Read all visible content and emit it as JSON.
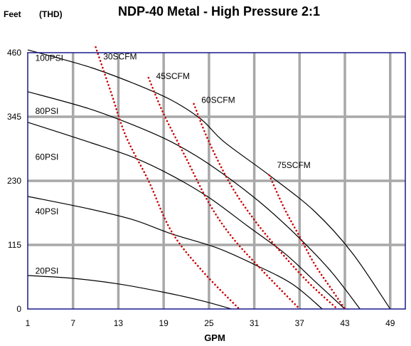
{
  "chart_data": {
    "type": "line",
    "title": "NDP-40 Metal - High Pressure 2:1",
    "ylabel": "Feet",
    "ylabel_secondary": "(THD)",
    "xlabel": "GPM",
    "xlim": [
      1,
      51
    ],
    "ylim": [
      0,
      460
    ],
    "x_ticks": [
      "1",
      "7",
      "13",
      "19",
      "25",
      "31",
      "37",
      "43",
      "49"
    ],
    "y_ticks": [
      "0",
      "115",
      "230",
      "345",
      "460"
    ],
    "grid": true,
    "colors": {
      "pressure_curve": "#000000",
      "air_curve": "#cc0000",
      "frame": "#1a1a8c",
      "grid": "#a8a8a8"
    },
    "pressure_series": [
      {
        "name": "100PSI",
        "points": [
          [
            1,
            465
          ],
          [
            9,
            435
          ],
          [
            15,
            405
          ],
          [
            20,
            375
          ],
          [
            24,
            340
          ],
          [
            27,
            300
          ],
          [
            33,
            240
          ],
          [
            39,
            175
          ],
          [
            44,
            100
          ],
          [
            49,
            0
          ]
        ]
      },
      {
        "name": "80PSI",
        "points": [
          [
            1,
            390
          ],
          [
            9,
            360
          ],
          [
            15,
            330
          ],
          [
            20,
            300
          ],
          [
            25,
            260
          ],
          [
            31,
            200
          ],
          [
            36,
            140
          ],
          [
            41,
            70
          ],
          [
            45,
            0
          ]
        ]
      },
      {
        "name": "60PSI",
        "points": [
          [
            1,
            335
          ],
          [
            9,
            300
          ],
          [
            15,
            272
          ],
          [
            20,
            240
          ],
          [
            25,
            200
          ],
          [
            30,
            150
          ],
          [
            35,
            100
          ],
          [
            39,
            50
          ],
          [
            43,
            0
          ]
        ]
      },
      {
        "name": "40PSI",
        "points": [
          [
            1,
            202
          ],
          [
            9,
            180
          ],
          [
            15,
            160
          ],
          [
            20,
            135
          ],
          [
            26,
            110
          ],
          [
            31,
            80
          ],
          [
            36,
            45
          ],
          [
            40,
            0
          ]
        ]
      },
      {
        "name": "20PSI",
        "points": [
          [
            1,
            60
          ],
          [
            7,
            55
          ],
          [
            13,
            45
          ],
          [
            19,
            30
          ],
          [
            24,
            15
          ],
          [
            28,
            0
          ]
        ]
      }
    ],
    "air_series": [
      {
        "name": "30SCFM",
        "points": [
          [
            10,
            470
          ],
          [
            12,
            390
          ],
          [
            14,
            310
          ],
          [
            17,
            230
          ],
          [
            20,
            140
          ],
          [
            24,
            70
          ],
          [
            29,
            0
          ]
        ]
      },
      {
        "name": "45SCFM",
        "points": [
          [
            17,
            415
          ],
          [
            19,
            350
          ],
          [
            22,
            270
          ],
          [
            25,
            190
          ],
          [
            28,
            130
          ],
          [
            32,
            70
          ],
          [
            37,
            0
          ]
        ]
      },
      {
        "name": "60SCFM",
        "points": [
          [
            23,
            368
          ],
          [
            25,
            300
          ],
          [
            28,
            220
          ],
          [
            31,
            160
          ],
          [
            34,
            110
          ],
          [
            38,
            50
          ],
          [
            42,
            0
          ]
        ]
      },
      {
        "name": "75SCFM",
        "points": [
          [
            33,
            240
          ],
          [
            35,
            180
          ],
          [
            37,
            130
          ],
          [
            39,
            80
          ],
          [
            41,
            40
          ],
          [
            43,
            0
          ]
        ]
      }
    ],
    "annotations": [
      {
        "text": "100PSI",
        "x": 2,
        "y": 445
      },
      {
        "text": "80PSI",
        "x": 2,
        "y": 350
      },
      {
        "text": "60PSI",
        "x": 2,
        "y": 268
      },
      {
        "text": "40PSI",
        "x": 2,
        "y": 170
      },
      {
        "text": "20PSI",
        "x": 2,
        "y": 63
      },
      {
        "text": "30SCFM",
        "x": 11,
        "y": 448
      },
      {
        "text": "45SCFM",
        "x": 18,
        "y": 413
      },
      {
        "text": "60SCFM",
        "x": 24,
        "y": 370
      },
      {
        "text": "75SCFM",
        "x": 34,
        "y": 253
      }
    ]
  }
}
